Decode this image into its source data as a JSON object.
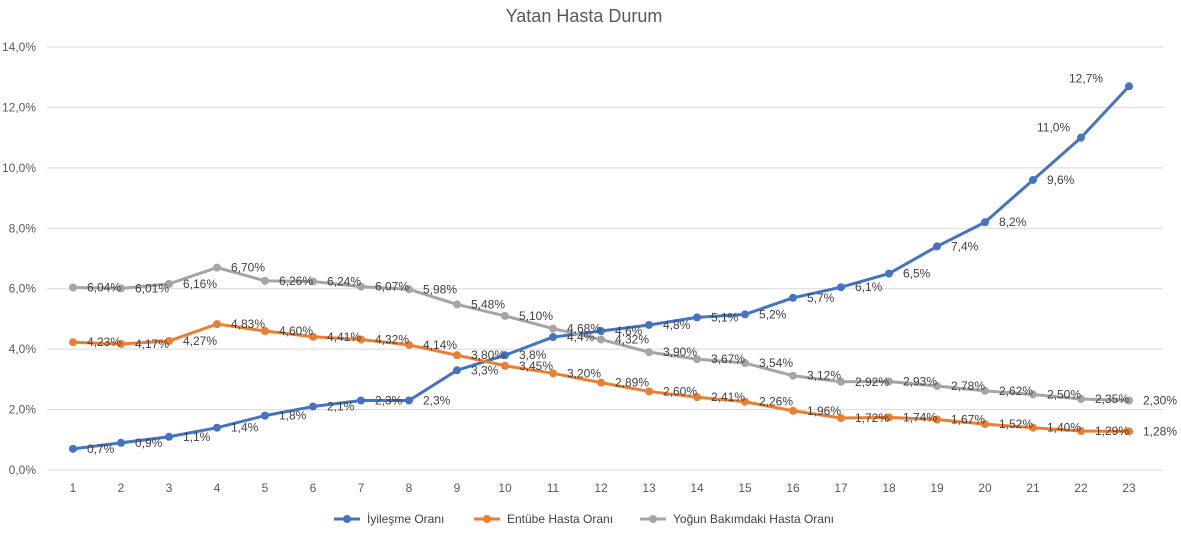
{
  "chart_data": {
    "type": "line",
    "title": "Yatan Hasta Durum",
    "xlabel": "",
    "ylabel": "",
    "x": [
      1,
      2,
      3,
      4,
      5,
      6,
      7,
      8,
      9,
      10,
      11,
      12,
      13,
      14,
      15,
      16,
      17,
      18,
      19,
      20,
      21,
      22,
      23
    ],
    "ylim": [
      0,
      14
    ],
    "y_ticks": [
      "0,0%",
      "2,0%",
      "4,0%",
      "6,0%",
      "8,0%",
      "10,0%",
      "12,0%",
      "14,0%"
    ],
    "grid": true,
    "legend": "bottom",
    "series": [
      {
        "name": "İyileşme Oranı",
        "color": "#4472c4",
        "values": [
          0.7,
          0.9,
          1.1,
          1.4,
          1.8,
          2.1,
          2.3,
          2.3,
          3.3,
          3.8,
          4.4,
          4.6,
          4.8,
          5.05,
          5.15,
          5.7,
          6.05,
          6.5,
          7.4,
          8.2,
          9.6,
          11.0,
          12.7
        ],
        "labels": [
          "0,7%",
          "0,9%",
          "1,1%",
          "1,4%",
          "1,8%",
          "2,1%",
          "2,3%",
          "2,3%",
          "3,3%",
          "3,8%",
          "4,4%",
          "4,6%",
          "4,8%",
          "5,1%",
          "5,2%",
          "5,7%",
          "6,1%",
          "6,5%",
          "7,4%",
          "8,2%",
          "9,6%",
          "11,0%",
          "12,7%"
        ]
      },
      {
        "name": "Entübe Hasta Oranı",
        "color": "#ed7d31",
        "values": [
          4.23,
          4.17,
          4.27,
          4.83,
          4.6,
          4.41,
          4.32,
          4.14,
          3.8,
          3.45,
          3.2,
          2.89,
          2.6,
          2.41,
          2.26,
          1.96,
          1.72,
          1.74,
          1.67,
          1.52,
          1.4,
          1.29,
          1.28
        ],
        "labels": [
          "4,23%",
          "4,17%",
          "4,27%",
          "4,83%",
          "4,60%",
          "4,41%",
          "4,32%",
          "4,14%",
          "3,80%",
          "3,45%",
          "3,20%",
          "2,89%",
          "2,60%",
          "2,41%",
          "2,26%",
          "1,96%",
          "1,72%",
          "1,74%",
          "1,67%",
          "1,52%",
          "1,40%",
          "1,29%",
          "1,28%"
        ]
      },
      {
        "name": "Yoğun Bakımdaki Hasta Oranı",
        "color": "#a5a5a5",
        "values": [
          6.04,
          6.01,
          6.16,
          6.7,
          6.26,
          6.24,
          6.07,
          5.98,
          5.48,
          5.1,
          4.68,
          4.32,
          3.9,
          3.67,
          3.54,
          3.12,
          2.92,
          2.93,
          2.78,
          2.62,
          2.5,
          2.35,
          2.3
        ],
        "labels": [
          "6,04%",
          "6,01%",
          "6,16%",
          "6,70%",
          "6,26%",
          "6,24%",
          "6,07%",
          "5,98%",
          "5,48%",
          "5,10%",
          "4,68%",
          "4,32%",
          "3,90%",
          "3,67%",
          "3,54%",
          "3,12%",
          "2,92%",
          "2,93%",
          "2,78%",
          "2,62%",
          "2,50%",
          "2,35%",
          "2,30%"
        ]
      }
    ]
  }
}
